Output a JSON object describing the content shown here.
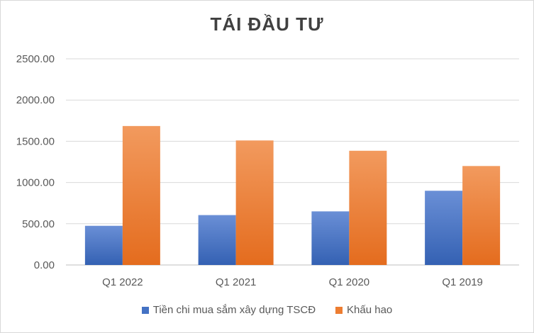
{
  "chart_data": {
    "type": "bar",
    "title": "TÁI ĐẦU TƯ",
    "categories": [
      "Q1 2022",
      "Q1 2021",
      "Q1 2020",
      "Q1 2019"
    ],
    "series": [
      {
        "name": "Tiền chi mua sắm xây dựng TSCĐ",
        "color": "#4472c4",
        "values": [
          475,
          605,
          650,
          900
        ]
      },
      {
        "name": "Khấu hao",
        "color": "#ed7d31",
        "values": [
          1685,
          1510,
          1385,
          1200
        ]
      }
    ],
    "ylim": [
      0,
      2500
    ],
    "yticks": [
      "0.00",
      "500.00",
      "1000.00",
      "1500.00",
      "2000.00",
      "2500.00"
    ],
    "grid": true,
    "legend_position": "bottom"
  }
}
